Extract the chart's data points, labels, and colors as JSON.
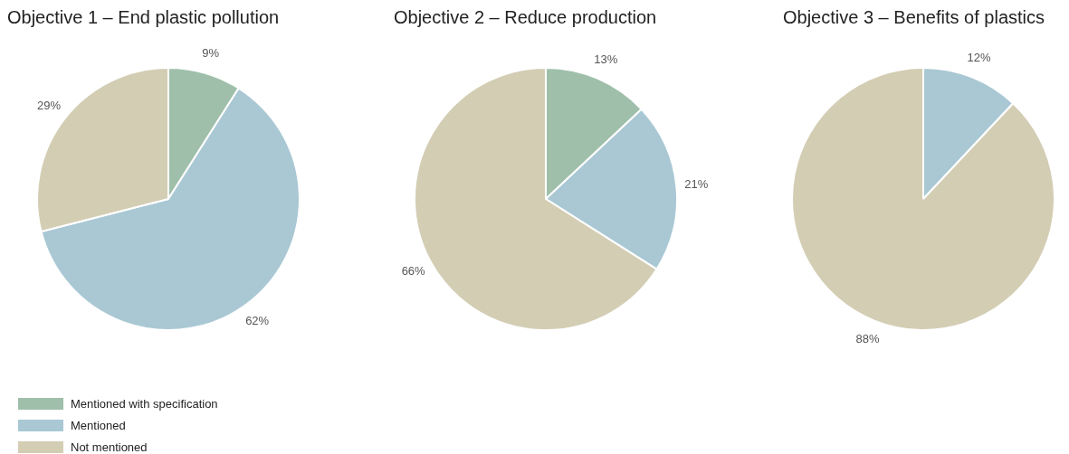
{
  "chart_data": [
    {
      "type": "pie",
      "title": "Objective 1 – End plastic pollution",
      "categories": [
        "Mentioned with specification",
        "Mentioned",
        "Not mentioned"
      ],
      "values": [
        9,
        62,
        29
      ],
      "colors": [
        "#9fbfaa",
        "#a9c8d4",
        "#d3cdb4"
      ],
      "value_labels": [
        "9%",
        "62%",
        "29%"
      ],
      "legend": "bottom left"
    },
    {
      "type": "pie",
      "title": "Objective 2 – Reduce production",
      "categories": [
        null,
        null,
        null
      ],
      "values": [
        13,
        21,
        66
      ],
      "colors": [
        "#9fbfaa",
        "#a9c8d4",
        "#d3cdb4"
      ],
      "value_labels": [
        "13%",
        "21%",
        "66%"
      ]
    },
    {
      "type": "pie",
      "title": "Objective 3 – Benefits of plastics",
      "categories": [
        null,
        null
      ],
      "values": [
        12,
        88
      ],
      "colors": [
        "#a9c8d4",
        "#d3cdb4"
      ],
      "value_labels": [
        "12%",
        "88%"
      ]
    }
  ]
}
